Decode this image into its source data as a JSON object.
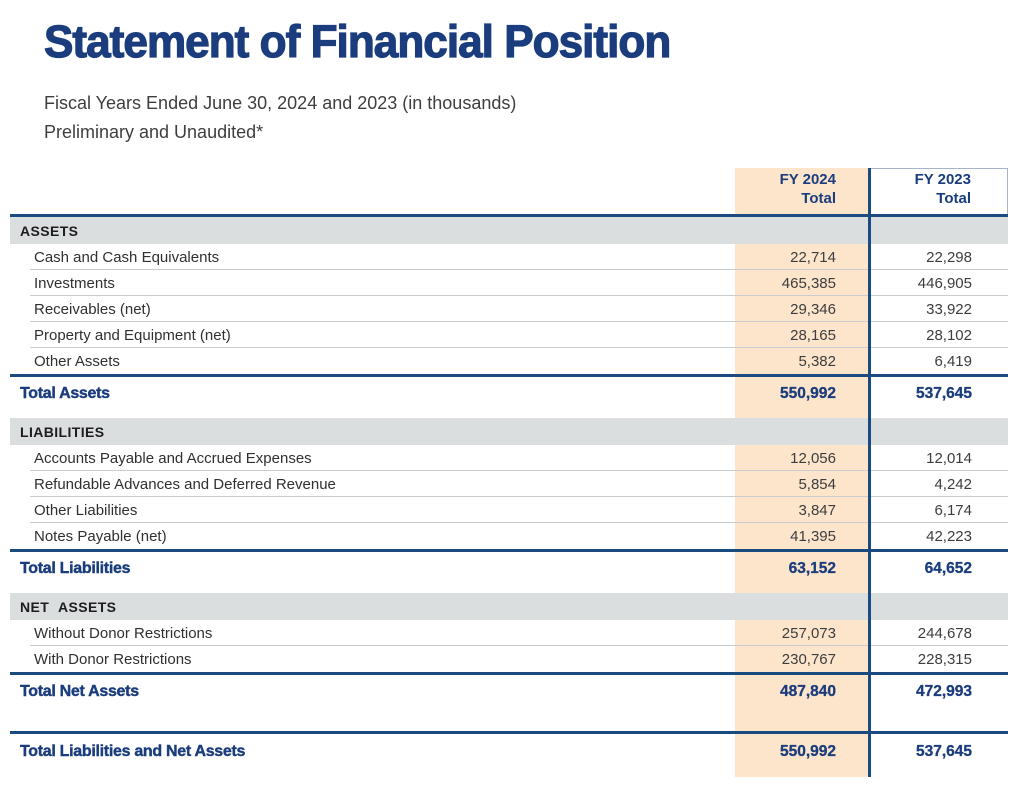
{
  "page": {
    "title": "Statement of Financial Position",
    "subtitle_line1": "Fiscal Years Ended June 30, 2024 and 2023 (in thousands)",
    "subtitle_line2": "Preliminary and Unaudited*"
  },
  "columns": {
    "fy2024": {
      "line1": "FY 2024",
      "line2": "Total"
    },
    "fy2023": {
      "line1": "FY 2023",
      "line2": "Total"
    }
  },
  "sections": [
    {
      "header": "ASSETS",
      "rows": [
        {
          "label": "Cash and Cash Equivalents",
          "fy2024": "22,714",
          "fy2023": "22,298"
        },
        {
          "label": "Investments",
          "fy2024": "465,385",
          "fy2023": "446,905"
        },
        {
          "label": "Receivables (net)",
          "fy2024": "29,346",
          "fy2023": "33,922"
        },
        {
          "label": "Property and Equipment (net)",
          "fy2024": "28,165",
          "fy2023": "28,102"
        },
        {
          "label": "Other Assets",
          "fy2024": "5,382",
          "fy2023": "6,419"
        }
      ],
      "total": {
        "label": "Total Assets",
        "fy2024": "550,992",
        "fy2023": "537,645"
      }
    },
    {
      "header": "LIABILITIES",
      "rows": [
        {
          "label": "Accounts Payable and Accrued Expenses",
          "fy2024": "12,056",
          "fy2023": "12,014"
        },
        {
          "label": "Refundable Advances and Deferred Revenue",
          "fy2024": "5,854",
          "fy2023": "4,242"
        },
        {
          "label": "Other Liabilities",
          "fy2024": "3,847",
          "fy2023": "6,174"
        },
        {
          "label": "Notes Payable (net)",
          "fy2024": "41,395",
          "fy2023": "42,223"
        }
      ],
      "total": {
        "label": "Total Liabilities",
        "fy2024": "63,152",
        "fy2023": "64,652"
      }
    },
    {
      "header": "NET ASSETS",
      "rows": [
        {
          "label": "Without Donor Restrictions",
          "fy2024": "257,073",
          "fy2023": "244,678"
        },
        {
          "label": "With Donor Restrictions",
          "fy2024": "230,767",
          "fy2023": "228,315"
        }
      ],
      "total": {
        "label": "Total Net Assets",
        "fy2024": "487,840",
        "fy2023": "472,993"
      }
    }
  ],
  "grand_total": {
    "label": "Total Liabilities and Net Assets",
    "fy2024": "550,992",
    "fy2023": "537,645"
  },
  "colors": {
    "navy": "#1B3D7D",
    "navy_line": "#1A4A80",
    "peach": "#FCE5CB",
    "section_gray": "#DBDEDF",
    "row_divider": "#C9CDCF",
    "text_dark": "#333333"
  }
}
